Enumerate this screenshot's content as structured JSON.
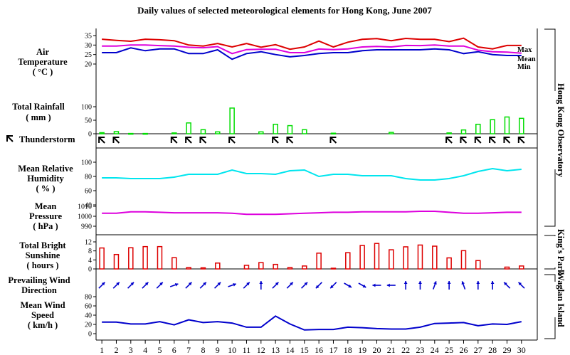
{
  "title": "Daily values of selected meteorological elements for Hong Kong, June 2007",
  "days": [
    1,
    2,
    3,
    4,
    5,
    6,
    7,
    8,
    9,
    10,
    11,
    12,
    13,
    14,
    15,
    16,
    17,
    18,
    19,
    20,
    21,
    22,
    23,
    24,
    25,
    26,
    27,
    28,
    29,
    30
  ],
  "labels": {
    "temperature": [
      "Air",
      "Temperature",
      "( °C )"
    ],
    "rainfall": [
      "Total Rainfall",
      "( mm )"
    ],
    "thunderstorm": "Thunderstorm",
    "humidity": [
      "Mean Relative",
      "Humidity",
      "( % )"
    ],
    "pressure": [
      "Mean",
      "Pressure",
      "( hPa )"
    ],
    "sunshine": [
      "Total Bright",
      "Sunshine",
      "( hours )"
    ],
    "wind_direction": [
      "Prevailing Wind",
      "Direction"
    ],
    "wind_speed": [
      "Mean Wind",
      "Speed",
      "( km/h )"
    ]
  },
  "stations": {
    "hko": "Hong Kong Observatory",
    "kings_park": "King's Park",
    "waglan": "Waglan Island"
  },
  "colors": {
    "max": "#dd0000",
    "mean": "#dd00dd",
    "min": "#0000cc",
    "rain": "#00dd00",
    "humidity": "#00e5ee",
    "pressure": "#dd00dd",
    "sunshine": "#dd0000",
    "wind": "#0000cc"
  },
  "chart_data": [
    {
      "type": "line",
      "title": "Air Temperature (°C)",
      "ylim": [
        20,
        35
      ],
      "yticks": [
        20,
        25,
        30,
        35
      ],
      "series": [
        {
          "name": "Max",
          "values": [
            33.1,
            32.5,
            32.0,
            33.1,
            32.8,
            32.3,
            30.0,
            29.5,
            30.8,
            29.0,
            30.8,
            28.9,
            30.2,
            27.8,
            29.0,
            32.1,
            29.0,
            31.5,
            33.0,
            33.4,
            32.3,
            33.5,
            33.0,
            33.0,
            31.8,
            33.6,
            29.0,
            28.0,
            29.8,
            29.8
          ]
        },
        {
          "name": "Mean",
          "values": [
            29.5,
            29.5,
            30.0,
            30.0,
            29.7,
            29.5,
            28.8,
            28.6,
            29.2,
            25.5,
            27.6,
            27.8,
            27.8,
            26.0,
            26.0,
            27.9,
            27.6,
            28.0,
            29.0,
            29.3,
            29.0,
            29.8,
            29.7,
            30.0,
            29.5,
            29.5,
            27.3,
            26.5,
            26.3,
            25.7
          ]
        },
        {
          "name": "Min",
          "values": [
            26.0,
            26.0,
            28.5,
            27.0,
            28.0,
            28.0,
            25.5,
            25.5,
            27.5,
            22.5,
            25.5,
            26.5,
            25.0,
            23.8,
            24.5,
            25.5,
            26.0,
            26.0,
            27.0,
            27.5,
            27.5,
            27.5,
            27.5,
            28.0,
            27.5,
            25.5,
            26.5,
            25.0,
            24.5,
            24.5
          ]
        }
      ]
    },
    {
      "type": "bar",
      "title": "Total Rainfall (mm)",
      "ylim": [
        0,
        100
      ],
      "yticks": [
        0,
        50,
        100
      ],
      "values": [
        4,
        8,
        1,
        1,
        0,
        3,
        40,
        15,
        7,
        95,
        0,
        7,
        35,
        30,
        15,
        0,
        2,
        0,
        0,
        0,
        5,
        0,
        0,
        0,
        3,
        14,
        35,
        52,
        62,
        57
      ]
    },
    {
      "type": "scatter",
      "title": "Thunderstorm days",
      "days": [
        1,
        2,
        6,
        7,
        8,
        10,
        13,
        14,
        17,
        25,
        26,
        27,
        28,
        29,
        30
      ]
    },
    {
      "type": "line",
      "title": "Mean Relative Humidity (%)",
      "ylim": [
        40,
        100
      ],
      "yticks": [
        40,
        60,
        80,
        100
      ],
      "values": [
        78,
        78,
        77,
        77,
        77,
        79,
        83,
        83,
        83,
        89,
        84,
        84,
        83,
        88,
        89,
        80,
        83,
        83,
        81,
        81,
        81,
        77,
        75,
        75,
        77,
        81,
        87,
        91,
        88,
        90
      ]
    },
    {
      "type": "line",
      "title": "Mean Pressure (hPa)",
      "ylim": [
        990,
        1010
      ],
      "yticks": [
        990,
        1000,
        1010
      ],
      "values": [
        1003.0,
        1003.0,
        1004.5,
        1004.5,
        1004.0,
        1003.5,
        1003.5,
        1003.5,
        1003.5,
        1003.0,
        1002.0,
        1002.0,
        1002.0,
        1002.5,
        1003.0,
        1003.5,
        1004.0,
        1004.0,
        1004.5,
        1004.5,
        1004.5,
        1004.5,
        1005.0,
        1005.0,
        1004.0,
        1003.0,
        1003.0,
        1003.5,
        1004.0,
        1004.0
      ]
    },
    {
      "type": "bar",
      "title": "Total Bright Sunshine (hours)",
      "ylim": [
        0,
        12
      ],
      "yticks": [
        0,
        4,
        8,
        12
      ],
      "values": [
        9.3,
        6.4,
        9.4,
        9.9,
        9.9,
        5.0,
        0.6,
        0.5,
        2.6,
        0.0,
        1.6,
        2.8,
        2.0,
        0.6,
        1.3,
        7.0,
        0.3,
        7.2,
        10.4,
        11.3,
        8.5,
        9.8,
        10.6,
        10.1,
        4.9,
        8.1,
        3.7,
        0.0,
        0.8,
        1.3
      ]
    },
    {
      "type": "scatter",
      "title": "Prevailing Wind Direction (degrees, direction wind blows from)",
      "values": [
        225,
        225,
        225,
        225,
        225,
        250,
        225,
        225,
        225,
        250,
        225,
        180,
        225,
        225,
        225,
        45,
        45,
        300,
        300,
        90,
        90,
        180,
        180,
        200,
        180,
        160,
        180,
        180,
        135,
        135
      ]
    },
    {
      "type": "line",
      "title": "Mean Wind Speed (km/h)",
      "ylim": [
        0,
        80
      ],
      "yticks": [
        0,
        20,
        40,
        60,
        80
      ],
      "values": [
        25,
        25,
        21,
        21,
        26,
        19,
        30,
        24,
        26,
        23,
        14,
        14,
        38,
        21,
        8,
        9,
        9,
        14,
        13,
        11,
        10,
        10,
        14,
        22,
        23,
        24,
        17,
        21,
        20,
        26
      ]
    }
  ]
}
